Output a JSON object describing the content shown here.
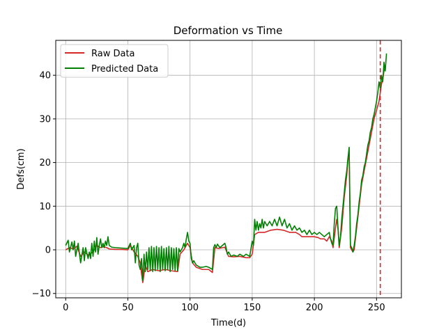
{
  "chart_data": {
    "type": "line",
    "title": "Deformation vs Time",
    "xlabel": "Time(d)",
    "ylabel": "Defs(cm)",
    "xlim": [
      -8,
      270
    ],
    "ylim": [
      -11,
      48
    ],
    "xticks": [
      0,
      50,
      100,
      150,
      200,
      250
    ],
    "yticks": [
      -10,
      0,
      10,
      20,
      30,
      40
    ],
    "grid": true,
    "legend_position": "upper left",
    "vline": {
      "x": 253,
      "color": "#d62728",
      "style": "dashed"
    },
    "series": [
      {
        "name": "Raw Data",
        "color": "#d62728",
        "points": [
          [
            0,
            0.0
          ],
          [
            3,
            0.5
          ],
          [
            6,
            0.2
          ],
          [
            9,
            0.8
          ],
          [
            12,
            -1.5
          ],
          [
            15,
            -0.5
          ],
          [
            18,
            -1.2
          ],
          [
            22,
            -0.5
          ],
          [
            25,
            1.0
          ],
          [
            28,
            0.5
          ],
          [
            30,
            0.7
          ],
          [
            33,
            0.5
          ],
          [
            35,
            0.2
          ],
          [
            40,
            0.1
          ],
          [
            45,
            0.1
          ],
          [
            50,
            0.0
          ],
          [
            52,
            1.0
          ],
          [
            55,
            -0.5
          ],
          [
            58,
            -1.5
          ],
          [
            60,
            -3.0
          ],
          [
            61,
            -5.5
          ],
          [
            62,
            -7.5
          ],
          [
            64,
            -3.5
          ],
          [
            66,
            -5.0
          ],
          [
            70,
            -4.5
          ],
          [
            75,
            -4.8
          ],
          [
            80,
            -4.5
          ],
          [
            85,
            -4.8
          ],
          [
            90,
            -5.0
          ],
          [
            92,
            -1.0
          ],
          [
            95,
            0.0
          ],
          [
            97,
            1.0
          ],
          [
            98,
            1.5
          ],
          [
            100,
            0.5
          ],
          [
            102,
            -3.0
          ],
          [
            105,
            -4.0
          ],
          [
            110,
            -4.5
          ],
          [
            115,
            -4.5
          ],
          [
            118,
            -5.2
          ],
          [
            120,
            0.5
          ],
          [
            123,
            0.3
          ],
          [
            128,
            0.6
          ],
          [
            131,
            -1.5
          ],
          [
            135,
            -1.6
          ],
          [
            140,
            -1.5
          ],
          [
            145,
            -1.8
          ],
          [
            148,
            -1.8
          ],
          [
            150,
            -1.0
          ],
          [
            152,
            3.5
          ],
          [
            155,
            4.0
          ],
          [
            160,
            4.0
          ],
          [
            165,
            4.5
          ],
          [
            170,
            4.7
          ],
          [
            175,
            4.5
          ],
          [
            180,
            4.0
          ],
          [
            185,
            4.0
          ],
          [
            188,
            3.5
          ],
          [
            190,
            3.0
          ],
          [
            195,
            3.0
          ],
          [
            200,
            3.0
          ],
          [
            203,
            2.8
          ],
          [
            205,
            2.5
          ],
          [
            208,
            2.5
          ],
          [
            210,
            2.0
          ],
          [
            212,
            3.0
          ],
          [
            213,
            2.5
          ],
          [
            214,
            2.0
          ],
          [
            215,
            0.5
          ],
          [
            217,
            5.0
          ],
          [
            218,
            7.0
          ],
          [
            219,
            5.0
          ],
          [
            220,
            0.5
          ],
          [
            222,
            5.0
          ],
          [
            224,
            12.0
          ],
          [
            226,
            17.0
          ],
          [
            227,
            20.5
          ],
          [
            228,
            22.0
          ],
          [
            229,
            0.5
          ],
          [
            230,
            0.0
          ],
          [
            231,
            -0.5
          ],
          [
            232,
            0.0
          ],
          [
            234,
            5.0
          ],
          [
            236,
            10.0
          ],
          [
            238,
            15.0
          ],
          [
            240,
            18.0
          ],
          [
            242,
            21.0
          ],
          [
            244,
            24.0
          ],
          [
            246,
            27.0
          ],
          [
            248,
            30.0
          ],
          [
            250,
            32.0
          ],
          [
            252,
            34.0
          ],
          [
            253,
            36.0
          ],
          [
            254,
            38.0
          ],
          [
            255,
            39.0
          ],
          [
            256,
            41.0
          ],
          [
            257,
            42.0
          ]
        ]
      },
      {
        "name": "Predicted Data",
        "color": "#008000",
        "points": [
          [
            0,
            1.0
          ],
          [
            2,
            2.2
          ],
          [
            3,
            -0.5
          ],
          [
            5,
            1.8
          ],
          [
            6,
            0.0
          ],
          [
            7,
            2.0
          ],
          [
            8,
            -1.5
          ],
          [
            10,
            1.5
          ],
          [
            12,
            -3.0
          ],
          [
            14,
            0.5
          ],
          [
            15,
            -2.5
          ],
          [
            16,
            0.5
          ],
          [
            18,
            -2.0
          ],
          [
            19,
            -0.5
          ],
          [
            20,
            -2.0
          ],
          [
            21,
            1.5
          ],
          [
            22,
            -1.5
          ],
          [
            23,
            2.0
          ],
          [
            24,
            -0.5
          ],
          [
            25,
            2.8
          ],
          [
            26,
            -1.0
          ],
          [
            27,
            1.0
          ],
          [
            28,
            2.5
          ],
          [
            29,
            0.5
          ],
          [
            30,
            1.5
          ],
          [
            31,
            0.5
          ],
          [
            32,
            2.0
          ],
          [
            33,
            1.0
          ],
          [
            34,
            3.0
          ],
          [
            35,
            1.0
          ],
          [
            37,
            0.6
          ],
          [
            40,
            0.5
          ],
          [
            45,
            0.4
          ],
          [
            50,
            0.3
          ],
          [
            52,
            1.5
          ],
          [
            53,
            0.0
          ],
          [
            55,
            1.0
          ],
          [
            56,
            -3.0
          ],
          [
            57,
            0.5
          ],
          [
            58,
            1.5
          ],
          [
            59,
            -3.5
          ],
          [
            60,
            -4.5
          ],
          [
            61,
            -2.0
          ],
          [
            62,
            -7.0
          ],
          [
            63,
            -1.0
          ],
          [
            64,
            -5.0
          ],
          [
            65,
            -0.5
          ],
          [
            66,
            -4.5
          ],
          [
            67,
            0.5
          ],
          [
            68,
            -4.8
          ],
          [
            69,
            0.8
          ],
          [
            70,
            -5.0
          ],
          [
            71,
            0.5
          ],
          [
            72,
            -4.8
          ],
          [
            73,
            0.8
          ],
          [
            74,
            -4.5
          ],
          [
            75,
            0.5
          ],
          [
            76,
            -5.0
          ],
          [
            77,
            0.8
          ],
          [
            78,
            -4.5
          ],
          [
            79,
            0.3
          ],
          [
            80,
            -4.8
          ],
          [
            81,
            0.5
          ],
          [
            82,
            -4.5
          ],
          [
            83,
            0.8
          ],
          [
            84,
            -5.0
          ],
          [
            85,
            0.5
          ],
          [
            86,
            -4.5
          ],
          [
            87,
            0.3
          ],
          [
            88,
            -4.8
          ],
          [
            89,
            0.5
          ],
          [
            90,
            -4.8
          ],
          [
            91,
            0.3
          ],
          [
            92,
            -0.5
          ],
          [
            94,
            0.5
          ],
          [
            95,
            1.5
          ],
          [
            96,
            0.5
          ],
          [
            97,
            2.5
          ],
          [
            98,
            4.0
          ],
          [
            99,
            2.0
          ],
          [
            100,
            1.5
          ],
          [
            101,
            -2.0
          ],
          [
            102,
            -3.0
          ],
          [
            103,
            -2.5
          ],
          [
            105,
            -3.5
          ],
          [
            108,
            -4.0
          ],
          [
            110,
            -4.0
          ],
          [
            113,
            -3.8
          ],
          [
            115,
            -4.0
          ],
          [
            118,
            -4.5
          ],
          [
            119,
            0.5
          ],
          [
            120,
            1.2
          ],
          [
            121,
            0.5
          ],
          [
            122,
            1.3
          ],
          [
            124,
            0.5
          ],
          [
            126,
            1.0
          ],
          [
            128,
            1.5
          ],
          [
            129,
            0.5
          ],
          [
            130,
            -1.0
          ],
          [
            131,
            -0.5
          ],
          [
            133,
            -1.5
          ],
          [
            135,
            -1.2
          ],
          [
            138,
            -1.5
          ],
          [
            140,
            -1.0
          ],
          [
            143,
            -1.5
          ],
          [
            145,
            -1.0
          ],
          [
            148,
            -1.5
          ],
          [
            150,
            2.0
          ],
          [
            151,
            1.0
          ],
          [
            152,
            7.0
          ],
          [
            153,
            4.5
          ],
          [
            154,
            6.5
          ],
          [
            155,
            4.5
          ],
          [
            156,
            6.0
          ],
          [
            157,
            5.0
          ],
          [
            158,
            7.0
          ],
          [
            159,
            5.0
          ],
          [
            160,
            6.5
          ],
          [
            162,
            5.5
          ],
          [
            164,
            6.5
          ],
          [
            166,
            5.5
          ],
          [
            168,
            7.0
          ],
          [
            170,
            5.5
          ],
          [
            172,
            7.5
          ],
          [
            174,
            5.5
          ],
          [
            176,
            7.0
          ],
          [
            178,
            5.0
          ],
          [
            180,
            6.0
          ],
          [
            182,
            4.5
          ],
          [
            184,
            5.5
          ],
          [
            186,
            4.5
          ],
          [
            188,
            5.0
          ],
          [
            190,
            4.0
          ],
          [
            192,
            4.5
          ],
          [
            194,
            3.5
          ],
          [
            196,
            4.5
          ],
          [
            198,
            3.5
          ],
          [
            200,
            4.0
          ],
          [
            202,
            3.5
          ],
          [
            204,
            4.0
          ],
          [
            206,
            3.5
          ],
          [
            208,
            3.0
          ],
          [
            210,
            3.5
          ],
          [
            212,
            4.0
          ],
          [
            213,
            2.5
          ],
          [
            214,
            1.5
          ],
          [
            215,
            1.0
          ],
          [
            216,
            6.0
          ],
          [
            217,
            9.5
          ],
          [
            218,
            10.0
          ],
          [
            219,
            5.0
          ],
          [
            220,
            1.0
          ],
          [
            221,
            3.0
          ],
          [
            222,
            7.0
          ],
          [
            223,
            10.0
          ],
          [
            224,
            13.0
          ],
          [
            225,
            16.0
          ],
          [
            226,
            18.0
          ],
          [
            227,
            21.0
          ],
          [
            228,
            23.5
          ],
          [
            229,
            1.0
          ],
          [
            230,
            0.5
          ],
          [
            231,
            -0.5
          ],
          [
            232,
            1.0
          ],
          [
            233,
            3.0
          ],
          [
            234,
            6.0
          ],
          [
            235,
            8.0
          ],
          [
            236,
            11.0
          ],
          [
            237,
            13.0
          ],
          [
            238,
            16.0
          ],
          [
            239,
            17.0
          ],
          [
            240,
            19.0
          ],
          [
            241,
            20.0
          ],
          [
            242,
            22.0
          ],
          [
            243,
            24.0
          ],
          [
            244,
            25.0
          ],
          [
            245,
            27.0
          ],
          [
            246,
            28.0
          ],
          [
            247,
            30.0
          ],
          [
            248,
            31.0
          ],
          [
            249,
            32.5
          ],
          [
            250,
            34.0
          ],
          [
            251,
            36.0
          ],
          [
            252,
            38.5
          ],
          [
            253,
            37.0
          ],
          [
            254,
            40.0
          ],
          [
            255,
            38.5
          ],
          [
            256,
            43.0
          ],
          [
            257,
            41.0
          ],
          [
            258,
            45.0
          ]
        ]
      }
    ]
  }
}
